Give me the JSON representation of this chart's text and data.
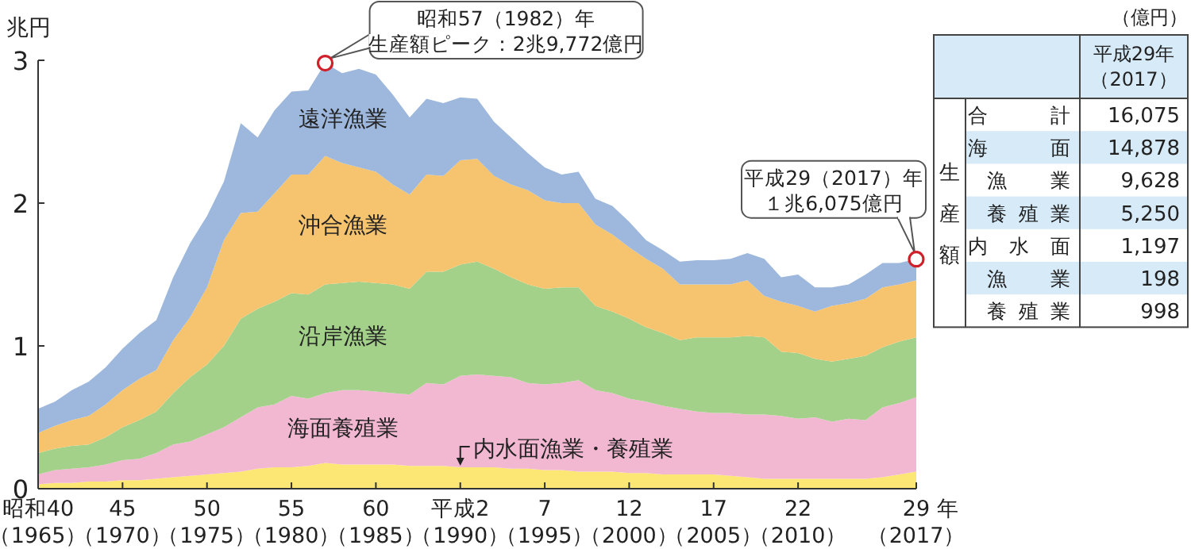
{
  "chart_data": [
    {
      "type": "area",
      "stacked": true,
      "ylabel": "兆円",
      "xlabel": "年",
      "categories": [
        "昭和40（1965）",
        null,
        null,
        null,
        null,
        "45（1970）",
        null,
        null,
        null,
        null,
        "50（1975）",
        null,
        null,
        null,
        null,
        "55（1980）",
        null,
        null,
        null,
        null,
        "60（1985）",
        null,
        null,
        null,
        null,
        "平成2（1990）",
        null,
        null,
        null,
        null,
        "7（1995）",
        null,
        null,
        null,
        null,
        "12（2000）",
        null,
        null,
        null,
        null,
        "17（2005）",
        null,
        null,
        null,
        null,
        "22（2010）",
        null,
        null,
        null,
        null,
        null,
        null,
        "29（2017）"
      ],
      "ylim": [
        0,
        3
      ],
      "yticks": [
        0,
        1,
        2,
        3
      ],
      "series": [
        {
          "name": "内水面漁業・養殖業",
          "color": "#fde774",
          "values": [
            0.03,
            0.04,
            0.04,
            0.05,
            0.05,
            0.06,
            0.06,
            0.07,
            0.08,
            0.09,
            0.1,
            0.11,
            0.12,
            0.14,
            0.15,
            0.15,
            0.16,
            0.18,
            0.17,
            0.17,
            0.17,
            0.17,
            0.16,
            0.16,
            0.16,
            0.15,
            0.15,
            0.15,
            0.14,
            0.14,
            0.13,
            0.13,
            0.12,
            0.12,
            0.12,
            0.11,
            0.11,
            0.1,
            0.1,
            0.1,
            0.1,
            0.09,
            0.08,
            0.07,
            0.07,
            0.07,
            0.07,
            0.07,
            0.07,
            0.07,
            0.08,
            0.1,
            0.12
          ]
        },
        {
          "name": "海面養殖業",
          "color": "#f2b8d2",
          "values": [
            0.07,
            0.09,
            0.1,
            0.1,
            0.12,
            0.14,
            0.15,
            0.18,
            0.23,
            0.24,
            0.28,
            0.32,
            0.38,
            0.43,
            0.44,
            0.5,
            0.47,
            0.49,
            0.52,
            0.52,
            0.51,
            0.5,
            0.5,
            0.58,
            0.57,
            0.64,
            0.65,
            0.64,
            0.64,
            0.6,
            0.6,
            0.61,
            0.64,
            0.57,
            0.55,
            0.52,
            0.5,
            0.48,
            0.46,
            0.44,
            0.43,
            0.44,
            0.44,
            0.45,
            0.44,
            0.42,
            0.43,
            0.4,
            0.42,
            0.41,
            0.49,
            0.5,
            0.52
          ]
        },
        {
          "name": "沿岸漁業",
          "color": "#a3d18a",
          "values": [
            0.15,
            0.15,
            0.16,
            0.16,
            0.19,
            0.23,
            0.27,
            0.29,
            0.36,
            0.45,
            0.49,
            0.57,
            0.69,
            0.69,
            0.72,
            0.72,
            0.73,
            0.76,
            0.75,
            0.76,
            0.76,
            0.76,
            0.74,
            0.78,
            0.79,
            0.78,
            0.79,
            0.75,
            0.7,
            0.69,
            0.67,
            0.67,
            0.65,
            0.59,
            0.57,
            0.56,
            0.52,
            0.51,
            0.48,
            0.52,
            0.53,
            0.53,
            0.55,
            0.54,
            0.45,
            0.46,
            0.41,
            0.42,
            0.42,
            0.45,
            0.42,
            0.43,
            0.42
          ]
        },
        {
          "name": "沖合漁業",
          "color": "#f6c46e",
          "values": [
            0.14,
            0.16,
            0.18,
            0.2,
            0.23,
            0.26,
            0.29,
            0.29,
            0.37,
            0.42,
            0.54,
            0.74,
            0.74,
            0.68,
            0.76,
            0.83,
            0.84,
            0.9,
            0.84,
            0.8,
            0.78,
            0.7,
            0.66,
            0.68,
            0.67,
            0.73,
            0.72,
            0.65,
            0.65,
            0.66,
            0.62,
            0.59,
            0.59,
            0.57,
            0.54,
            0.5,
            0.48,
            0.45,
            0.39,
            0.37,
            0.37,
            0.37,
            0.39,
            0.29,
            0.35,
            0.33,
            0.33,
            0.39,
            0.39,
            0.4,
            0.42,
            0.4,
            0.4
          ]
        },
        {
          "name": "遠洋漁業",
          "color": "#9db8dc",
          "values": [
            0.17,
            0.17,
            0.21,
            0.24,
            0.26,
            0.29,
            0.32,
            0.35,
            0.44,
            0.52,
            0.5,
            0.41,
            0.63,
            0.52,
            0.58,
            0.58,
            0.59,
            0.65,
            0.63,
            0.69,
            0.68,
            0.63,
            0.54,
            0.53,
            0.51,
            0.44,
            0.42,
            0.38,
            0.33,
            0.26,
            0.23,
            0.2,
            0.22,
            0.18,
            0.2,
            0.18,
            0.13,
            0.13,
            0.16,
            0.17,
            0.17,
            0.18,
            0.19,
            0.26,
            0.17,
            0.22,
            0.17,
            0.13,
            0.13,
            0.17,
            0.17,
            0.15,
            0.15
          ]
        }
      ],
      "annotations": [
        "昭和57（1982）年生産額ピーク：2兆9,772億円",
        {
          "text": "平成29（2017）年１兆6,075億円",
          "x": "29（2017）",
          "y": 1.6075
        }
      ]
    },
    {
      "type": "other",
      "annotations": [
        "（億円）"
      ],
      "ylabel": "生産額",
      "categories": [
        "平成29年（2017）"
      ],
      "y_categories": [
        "合計",
        "海面",
        "漁業",
        "養殖業",
        "内水面",
        "漁業",
        "養殖業"
      ],
      "cell_labels": [
        [
          "16,075"
        ],
        [
          "14,878"
        ],
        [
          "9,628"
        ],
        [
          "5,250"
        ],
        [
          "1,197"
        ],
        [
          "198"
        ],
        [
          "998"
        ]
      ]
    }
  ]
}
